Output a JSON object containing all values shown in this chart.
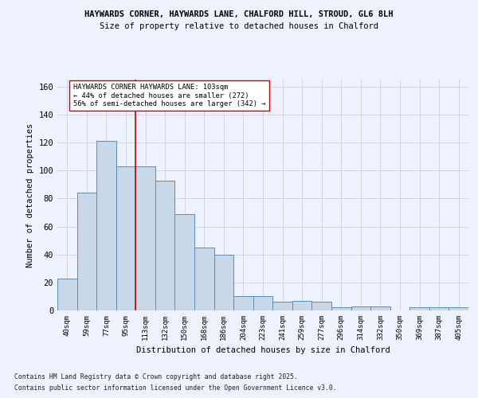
{
  "title1": "HAYWARDS CORNER, HAYWARDS LANE, CHALFORD HILL, STROUD, GL6 8LH",
  "title2": "Size of property relative to detached houses in Chalford",
  "xlabel": "Distribution of detached houses by size in Chalford",
  "ylabel": "Number of detached properties",
  "categories": [
    "40sqm",
    "59sqm",
    "77sqm",
    "95sqm",
    "113sqm",
    "132sqm",
    "150sqm",
    "168sqm",
    "186sqm",
    "204sqm",
    "223sqm",
    "241sqm",
    "259sqm",
    "277sqm",
    "296sqm",
    "314sqm",
    "332sqm",
    "350sqm",
    "369sqm",
    "387sqm",
    "405sqm"
  ],
  "values": [
    23,
    84,
    121,
    103,
    103,
    93,
    69,
    45,
    40,
    10,
    10,
    6,
    7,
    6,
    2,
    3,
    3,
    0,
    2,
    2,
    2
  ],
  "bar_color": "#c8d8e8",
  "bar_edge_color": "#5b8db8",
  "grid_color": "#ccd6e8",
  "annotation_box_text": "HAYWARDS CORNER HAYWARDS LANE: 103sqm\n← 44% of detached houses are smaller (272)\n56% of semi-detached houses are larger (342) →",
  "vline_x_index": 3.5,
  "vline_color": "#cc0000",
  "ylim": [
    0,
    165
  ],
  "yticks": [
    0,
    20,
    40,
    60,
    80,
    100,
    120,
    140,
    160
  ],
  "footer1": "Contains HM Land Registry data © Crown copyright and database right 2025.",
  "footer2": "Contains public sector information licensed under the Open Government Licence v3.0.",
  "bg_color": "#eef2fc"
}
